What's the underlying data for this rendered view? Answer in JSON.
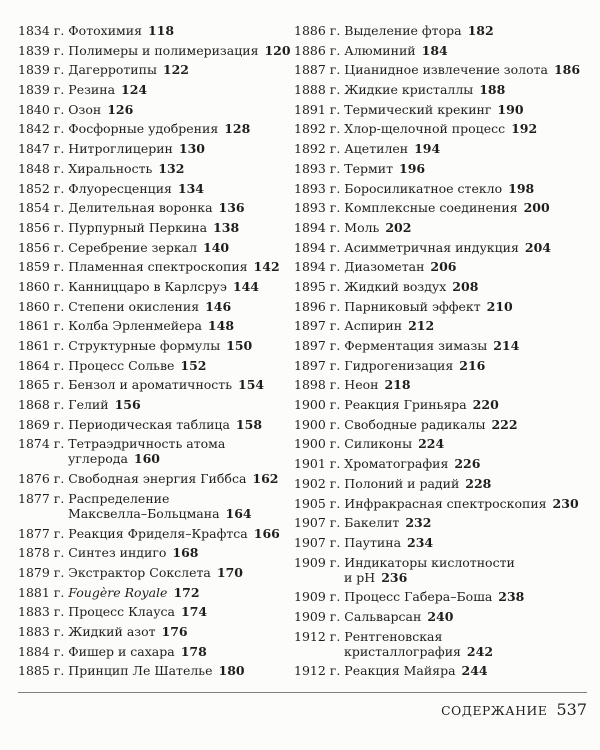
{
  "colors": {
    "background": "#fcfcfa",
    "text": "#1e1e1e",
    "rule": "#7f7f7f"
  },
  "footer": {
    "section_label": "СОДЕРЖАНИЕ",
    "page_number": "537"
  },
  "toc": {
    "columns": [
      {
        "entries": [
          {
            "year": "1834 г.",
            "title": "Фотохимия",
            "page": "118"
          },
          {
            "year": "1839 г.",
            "title": "Полимеры и полимеризация",
            "page": "120"
          },
          {
            "year": "1839 г.",
            "title": "Дагерротипы",
            "page": "122"
          },
          {
            "year": "1839 г.",
            "title": "Резина",
            "page": "124"
          },
          {
            "year": "1840 г.",
            "title": "Озон",
            "page": "126"
          },
          {
            "year": "1842 г.",
            "title": "Фосфорные удобрения",
            "page": "128"
          },
          {
            "year": "1847 г.",
            "title": "Нитроглицерин",
            "page": "130"
          },
          {
            "year": "1848 г.",
            "title": "Хиральность",
            "page": "132"
          },
          {
            "year": "1852 г.",
            "title": "Флуоресценция",
            "page": "134"
          },
          {
            "year": "1854 г.",
            "title": "Делительная воронка",
            "page": "136"
          },
          {
            "year": "1856 г.",
            "title": "Пурпурный Перкина",
            "page": "138"
          },
          {
            "year": "1856 г.",
            "title": "Серебрение зеркал",
            "page": "140"
          },
          {
            "year": "1859 г.",
            "title": "Пламенная спектроскопия",
            "page": "142"
          },
          {
            "year": "1860 г.",
            "title": "Канниццаро в Карлсруэ",
            "page": "144"
          },
          {
            "year": "1860 г.",
            "title": "Степени окисления",
            "page": "146"
          },
          {
            "year": "1861 г.",
            "title": "Колба Эрленмейера",
            "page": "148"
          },
          {
            "year": "1861 г.",
            "title": "Структурные формулы",
            "page": "150"
          },
          {
            "year": "1864 г.",
            "title": "Процесс Сольве",
            "page": "152"
          },
          {
            "year": "1865 г.",
            "title": "Бензол и ароматичность",
            "page": "154"
          },
          {
            "year": "1868 г.",
            "title": "Гелий",
            "page": "156"
          },
          {
            "year": "1869 г.",
            "title": "Периодическая таблица",
            "page": "158"
          },
          {
            "year": "1874 г.",
            "title": "Тетраэдричность атома\nуглерода",
            "page": "160"
          },
          {
            "year": "1876 г.",
            "title": "Свободная энергия Гиббса",
            "page": "162"
          },
          {
            "year": "1877 г.",
            "title": "Распределение\nМаксвелла–Больцмана",
            "page": "164"
          },
          {
            "year": "1877 г.",
            "title": "Реакция Фриделя–Крафтса",
            "page": "166"
          },
          {
            "year": "1878 г.",
            "title": "Синтез индиго",
            "page": "168"
          },
          {
            "year": "1879 г.",
            "title": "Экстрактор Сокслета",
            "page": "170"
          },
          {
            "year": "1881 г.",
            "title": "Fougère Royale",
            "page": "172",
            "italic": true
          },
          {
            "year": "1883 г.",
            "title": "Процесс Клауса",
            "page": "174"
          },
          {
            "year": "1883 г.",
            "title": "Жидкий азот",
            "page": "176"
          },
          {
            "year": "1884 г.",
            "title": "Фишер и сахара",
            "page": "178"
          },
          {
            "year": "1885 г.",
            "title": "Принцип Ле Шателье",
            "page": "180"
          }
        ]
      },
      {
        "entries": [
          {
            "year": "1886 г.",
            "title": "Выделение фтора",
            "page": "182"
          },
          {
            "year": "1886 г.",
            "title": "Алюминий",
            "page": "184"
          },
          {
            "year": "1887 г.",
            "title": "Цианидное извлечение золота",
            "page": "186"
          },
          {
            "year": "1888 г.",
            "title": "Жидкие кристаллы",
            "page": "188"
          },
          {
            "year": "1891 г.",
            "title": "Термический крекинг",
            "page": "190"
          },
          {
            "year": "1892 г.",
            "title": "Хлор-щелочной процесс",
            "page": "192"
          },
          {
            "year": "1892 г.",
            "title": "Ацетилен",
            "page": "194"
          },
          {
            "year": "1893 г.",
            "title": "Термит",
            "page": "196"
          },
          {
            "year": "1893 г.",
            "title": "Боросиликатное стекло",
            "page": "198"
          },
          {
            "year": "1893 г.",
            "title": "Комплексные соединения",
            "page": "200"
          },
          {
            "year": "1894 г.",
            "title": "Моль",
            "page": "202"
          },
          {
            "year": "1894 г.",
            "title": "Асимметричная индукция",
            "page": "204"
          },
          {
            "year": "1894 г.",
            "title": "Диазометан",
            "page": "206"
          },
          {
            "year": "1895 г.",
            "title": "Жидкий воздух",
            "page": "208"
          },
          {
            "year": "1896 г.",
            "title": "Парниковый эффект",
            "page": "210"
          },
          {
            "year": "1897 г.",
            "title": "Аспирин",
            "page": "212"
          },
          {
            "year": "1897 г.",
            "title": "Ферментация зимазы",
            "page": "214"
          },
          {
            "year": "1897 г.",
            "title": "Гидрогенизация",
            "page": "216"
          },
          {
            "year": "1898 г.",
            "title": "Неон",
            "page": "218"
          },
          {
            "year": "1900 г.",
            "title": "Реакция Гриньяра",
            "page": "220"
          },
          {
            "year": "1900 г.",
            "title": "Свободные радикалы",
            "page": "222"
          },
          {
            "year": "1900 г.",
            "title": "Силиконы",
            "page": "224"
          },
          {
            "year": "1901 г.",
            "title": "Хроматография",
            "page": "226"
          },
          {
            "year": "1902 г.",
            "title": "Полоний и радий",
            "page": "228"
          },
          {
            "year": "1905 г.",
            "title": "Инфракрасная спектроскопия",
            "page": "230"
          },
          {
            "year": "1907 г.",
            "title": "Бакелит",
            "page": "232"
          },
          {
            "year": "1907 г.",
            "title": "Паутина",
            "page": "234"
          },
          {
            "year": "1909 г.",
            "title": "Индикаторы кислотности\nи pH",
            "page": "236"
          },
          {
            "year": "1909 г.",
            "title": "Процесс Габера–Боша",
            "page": "238"
          },
          {
            "year": "1909 г.",
            "title": "Сальварсан",
            "page": "240"
          },
          {
            "year": "1912 г.",
            "title": "Рентгеновская\nкристаллография",
            "page": "242"
          },
          {
            "year": "1912 г.",
            "title": "Реакция Майяра",
            "page": "244"
          }
        ]
      }
    ]
  }
}
